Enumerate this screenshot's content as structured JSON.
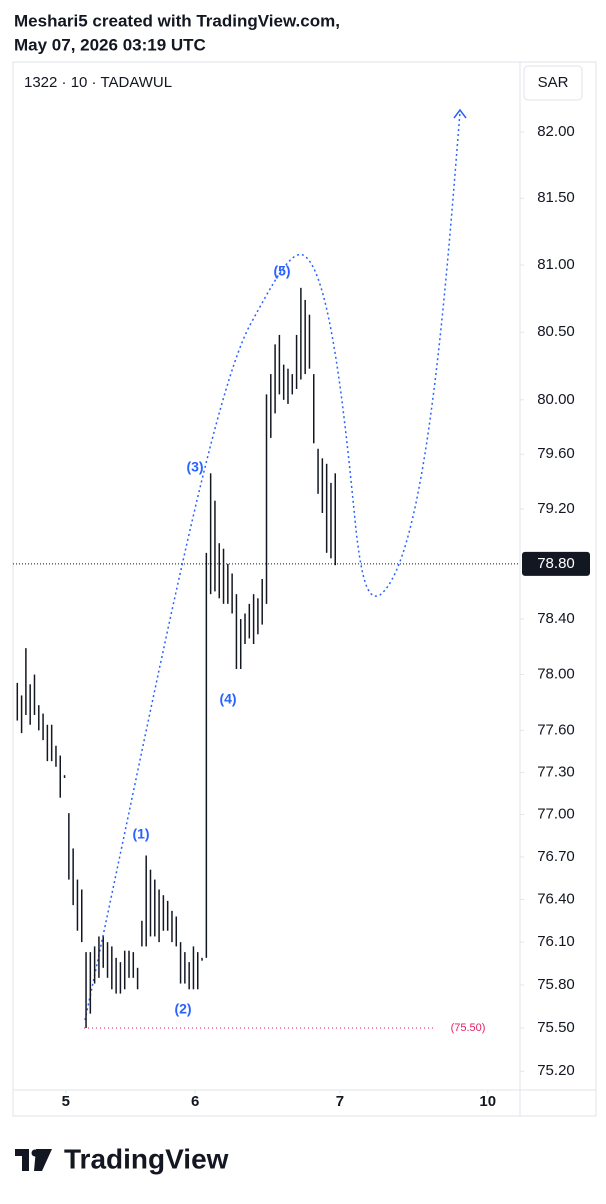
{
  "header": {
    "line1": "Meshari5 created with TradingView.com,",
    "line2": "May 07, 2026 03:19 UTC"
  },
  "chart_data": {
    "type": "hl-bar",
    "title": "1322 · 10 · TADAWUL",
    "currency": "SAR",
    "log_scale": true,
    "color": "#131722",
    "series": [
      {
        "high": [
          77.94,
          77.85,
          78.19,
          77.93,
          78.0,
          77.78,
          77.72,
          77.64,
          77.64,
          77.49,
          77.42,
          77.28,
          77.01,
          76.76,
          76.54,
          76.47,
          76.03,
          76.03,
          76.07,
          76.14,
          76.14,
          76.1,
          76.07,
          75.99,
          75.96,
          76.04,
          76.04,
          76.03,
          75.92,
          76.25,
          76.71,
          76.61,
          76.54,
          76.47,
          76.43,
          76.39,
          76.32,
          76.28,
          76.1,
          76.03,
          75.96,
          76.07,
          76.03,
          75.99,
          78.88,
          79.46,
          79.26,
          78.95,
          78.91,
          78.8,
          78.73,
          78.58,
          78.4,
          78.44,
          78.51,
          78.58,
          78.55,
          78.69,
          80.04,
          80.19,
          80.41,
          80.48,
          80.26,
          80.23,
          80.19,
          80.48,
          80.83,
          80.74,
          80.63,
          80.19,
          79.64,
          79.57,
          79.53,
          79.39,
          79.46
        ],
        "low": [
          77.67,
          77.58,
          77.71,
          77.64,
          77.71,
          77.6,
          77.53,
          77.38,
          77.38,
          77.34,
          77.12,
          77.26,
          76.54,
          76.36,
          76.18,
          76.1,
          75.5,
          75.6,
          75.81,
          75.85,
          75.92,
          75.85,
          75.77,
          75.74,
          75.74,
          75.77,
          75.85,
          75.85,
          75.77,
          76.07,
          76.07,
          76.14,
          76.14,
          76.1,
          76.18,
          76.18,
          76.1,
          76.07,
          75.81,
          75.81,
          75.77,
          75.77,
          75.77,
          75.97,
          75.99,
          78.58,
          78.6,
          78.55,
          78.51,
          78.51,
          78.44,
          78.04,
          78.04,
          78.22,
          78.26,
          78.22,
          78.29,
          78.36,
          78.51,
          79.72,
          79.9,
          80.04,
          80.0,
          79.97,
          80.04,
          80.08,
          80.15,
          80.19,
          80.23,
          79.68,
          79.31,
          79.17,
          78.88,
          78.84,
          78.79
        ]
      }
    ],
    "xlim": [
      -1,
      117
    ],
    "xticks": [
      {
        "value": 11.3,
        "label": "5"
      },
      {
        "value": 41.4,
        "label": "6"
      },
      {
        "value": 75.1,
        "label": "7"
      },
      {
        "value": 109.5,
        "label": "10"
      }
    ],
    "ylim": [
      75.07,
      82.53
    ],
    "yticks": [
      {
        "value": 82,
        "label": "82.00"
      },
      {
        "value": 81.5,
        "label": "81.50"
      },
      {
        "value": 81,
        "label": "81.00"
      },
      {
        "value": 80.5,
        "label": "80.50"
      },
      {
        "value": 80,
        "label": "80.00"
      },
      {
        "value": 79.6,
        "label": "79.60"
      },
      {
        "value": 79.2,
        "label": "79.20"
      },
      {
        "value": 78.4,
        "label": "78.40"
      },
      {
        "value": 78,
        "label": "78.00"
      },
      {
        "value": 77.6,
        "label": "77.60"
      },
      {
        "value": 77.3,
        "label": "77.30"
      },
      {
        "value": 77,
        "label": "77.00"
      },
      {
        "value": 76.7,
        "label": "76.70"
      },
      {
        "value": 76.4,
        "label": "76.40"
      },
      {
        "value": 76.1,
        "label": "76.10"
      },
      {
        "value": 75.8,
        "label": "75.80"
      },
      {
        "value": 75.5,
        "label": "75.50"
      },
      {
        "value": 75.2,
        "label": "75.20"
      }
    ],
    "last_price": {
      "value": 78.8,
      "label": "78.80"
    },
    "price_line": {
      "value": 75.5,
      "label": "(75.50)"
    },
    "annotations": [
      "(1)",
      "(2)",
      "(3)",
      "(4)",
      "(5)"
    ]
  },
  "footer": {
    "brand": "TradingView"
  }
}
